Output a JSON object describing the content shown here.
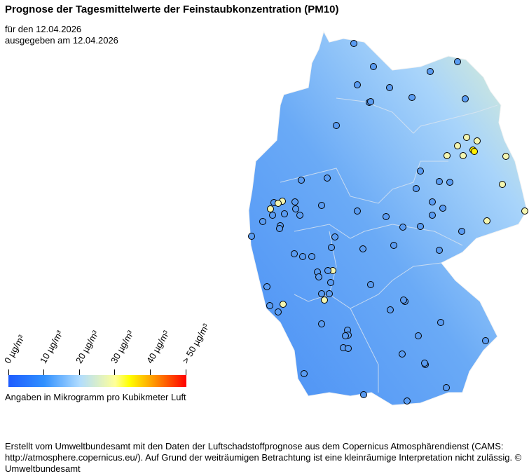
{
  "title": "Prognose der Tagesmittelwerte der Feinstaubkonzentration (PM10)",
  "date_line": "für den 12.04.2026",
  "issued_line": "ausgegeben am 12.04.2026",
  "legend": {
    "ticks": [
      "0  µg/m³",
      "10  µg/m³",
      "20  µg/m³",
      "30  µg/m³",
      "40  µg/m³",
      "> 50  µg/m³"
    ],
    "caption": "Angaben in Mikrogramm pro Kubikmeter Luft",
    "colors": [
      "#1e5cff",
      "#3090ff",
      "#b0dcff",
      "#ffff99",
      "#ffff00",
      "#ffa500",
      "#ff0000"
    ]
  },
  "footer": "Erstellt vom Umweltbundesamt mit den Daten der Luftschadstoffprognose aus dem Copernicus Atmosphärendienst (CAMS: http://atmosphere.copernicus.eu/). Auf Grund der weiträumigen Betrachtung ist eine kleinräumige Interpretation nicht zulässig. © Umweltbundesamt"
}
